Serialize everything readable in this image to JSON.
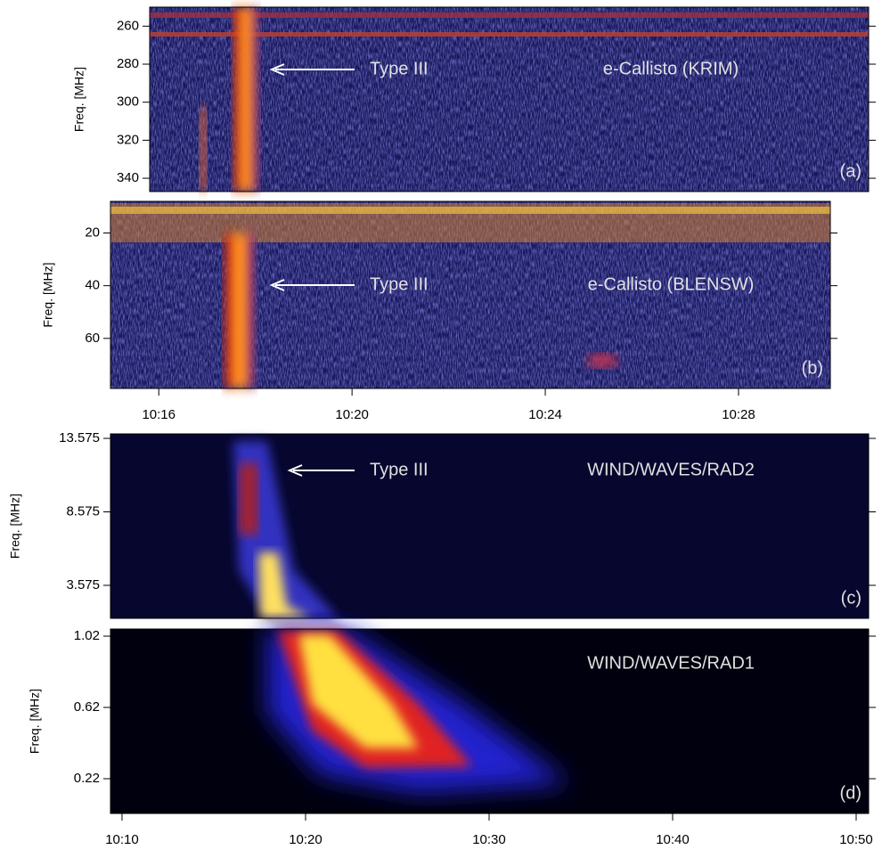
{
  "chart_data": [
    {
      "type": "spectrogram",
      "ylabel": "Freq. [MHz]",
      "annotation": "Type III",
      "instrument": "e-Callisto (KRIM)",
      "panel_label": "(a)",
      "ylim": [
        250,
        347
      ],
      "yticks": [
        260,
        280,
        300,
        320,
        340
      ],
      "yaxis_reversed": true,
      "xlim": [
        15.8,
        30.7
      ],
      "background": "#16165a"
    },
    {
      "type": "spectrogram",
      "ylabel": "Freq. [MHz]",
      "annotation": "Type III",
      "instrument": "e-Callisto (BLENSW)",
      "panel_label": "(b)",
      "ylim": [
        8,
        79
      ],
      "yticks": [
        20,
        40,
        60
      ],
      "yaxis_reversed": true,
      "xlim": [
        15,
        29.9
      ],
      "xticks": [
        {
          "value": 16,
          "label": "10:16"
        },
        {
          "value": 20,
          "label": "10:20"
        },
        {
          "value": 24,
          "label": "10:24"
        },
        {
          "value": 28,
          "label": "10:28"
        }
      ],
      "background": "#18185e"
    },
    {
      "type": "spectrogram",
      "ylabel": "Freq. [MHz]",
      "annotation": "Type III",
      "instrument": "WIND/WAVES/RAD2",
      "panel_label": "(c)",
      "ylim": [
        1.33,
        13.88
      ],
      "yticks": [
        13.575,
        8.575,
        3.575
      ],
      "yaxis_reversed": false,
      "xlim": [
        9.37,
        50.68
      ],
      "background": "#06062e"
    },
    {
      "type": "spectrogram",
      "ylabel": "Freq. [MHz]",
      "instrument": "WIND/WAVES/RAD1",
      "panel_label": "(d)",
      "ylim": [
        0.025,
        1.06
      ],
      "yticks": [
        1.02,
        0.62,
        0.22
      ],
      "yaxis_reversed": false,
      "xlim": [
        9.37,
        50.68
      ],
      "xticks": [
        {
          "value": 10,
          "label": "10:10"
        },
        {
          "value": 20,
          "label": "10:20"
        },
        {
          "value": 30,
          "label": "10:30"
        },
        {
          "value": 40,
          "label": "10:40"
        },
        {
          "value": 50,
          "label": "10:50"
        }
      ],
      "background": "#00000e"
    }
  ]
}
